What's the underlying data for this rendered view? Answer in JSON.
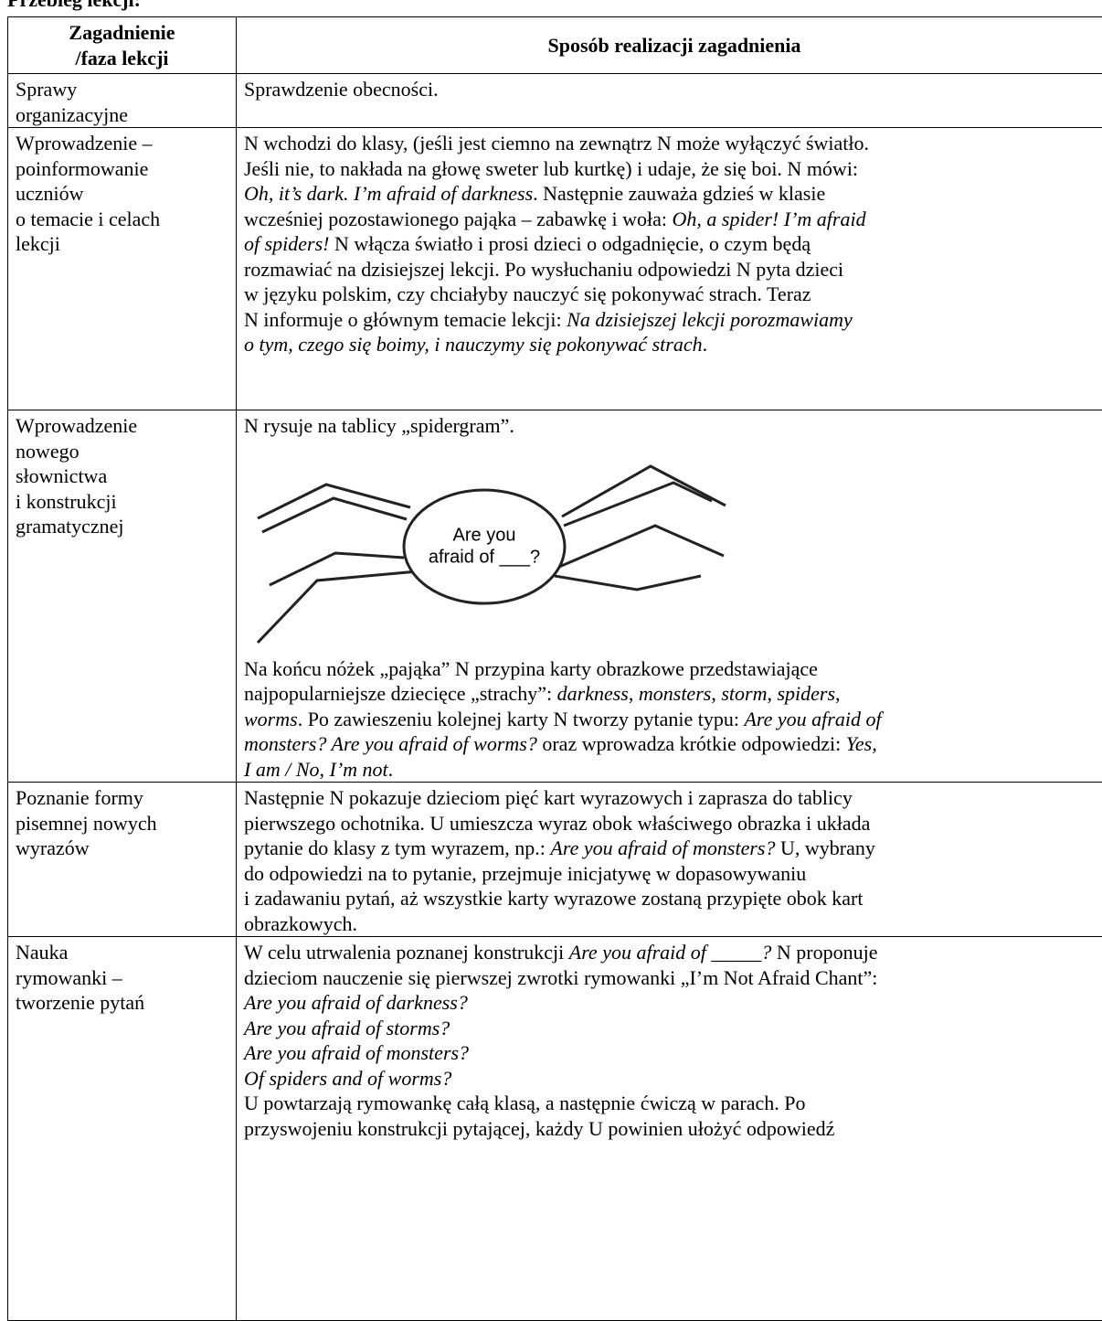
{
  "header": {
    "title": "Przebieg lekcji:"
  },
  "table": {
    "columns": [
      [
        "Zagadnienie",
        "/faza lekcji"
      ],
      [
        "Sposób realizacji zagadnienia"
      ]
    ],
    "rows": [
      {
        "topic": [
          "Sprawy",
          "organizacyjne"
        ],
        "blocks": [
          {
            "lines": [
              [
                {
                  "text": "Sprawdzenie obecności."
                }
              ]
            ]
          }
        ]
      },
      {
        "topic": [
          "Wprowadzenie –",
          "poinformowanie",
          "uczniów",
          "o temacie i celach",
          "lekcji"
        ],
        "blocks": [
          {
            "lines": [
              [
                {
                  "text": "N wchodzi do klasy, (jeśli jest ciemno na zewnątrz N może wyłączyć światło."
                }
              ],
              [
                {
                  "text": "Jeśli nie, to nakłada na głowę sweter lub kurtkę) i udaje, że się boi. N mówi:"
                }
              ],
              [
                {
                  "text": "Oh, it’s dark. I’m afraid of darkness",
                  "italic": true
                },
                {
                  "text": ". Następnie zauważa gdzieś w klasie"
                }
              ],
              [
                {
                  "text": "wcześniej pozostawionego pająka – zabawkę i woła: "
                },
                {
                  "text": "Oh, a spider! I’m afraid",
                  "italic": true
                }
              ],
              [
                {
                  "text": "of spiders!",
                  "italic": true
                },
                {
                  "text": " N włącza światło i prosi dzieci o odgadnięcie, o czym będą"
                }
              ],
              [
                {
                  "text": "rozmawiać na dzisiejszej lekcji. Po wysłuchaniu odpowiedzi N pyta dzieci"
                }
              ],
              [
                {
                  "text": "w języku polskim, czy chciałyby nauczyć się pokonywać strach. Teraz"
                }
              ],
              [
                {
                  "text": "N informuje o głównym temacie lekcji: "
                },
                {
                  "text": "Na dzisiejszej lekcji porozmawiamy",
                  "italic": true
                }
              ],
              [
                {
                  "text": "o tym, czego się boimy, i nauczymy się pokonywać strach",
                  "italic": true
                },
                {
                  "text": "."
                }
              ]
            ]
          }
        ]
      },
      {
        "topic": [
          "Wprowadzenie",
          "nowego",
          "słownictwa",
          "i konstrukcji",
          "gramatycznej"
        ],
        "blocks": [
          {
            "lines": [
              [
                {
                  "text": "N rysuje na tablicy „spidergram”."
                }
              ]
            ]
          },
          {
            "diagram": [
              "Are you",
              "afraid of ___?"
            ]
          },
          {
            "lines": [
              [
                {
                  "text": "Na końcu nóżek „pająka” N przypina karty obrazkowe przedstawiające"
                }
              ],
              [
                {
                  "text": "najpopularniejsze dziecięce „strachy”: "
                },
                {
                  "text": "darkness",
                  "italic": true
                },
                {
                  "text": ", "
                },
                {
                  "text": "monsters",
                  "italic": true
                },
                {
                  "text": ", "
                },
                {
                  "text": "storm",
                  "italic": true
                },
                {
                  "text": ", "
                },
                {
                  "text": "spiders",
                  "italic": true
                },
                {
                  "text": ","
                }
              ],
              [
                {
                  "text": "worms",
                  "italic": true
                },
                {
                  "text": ". Po zawieszeniu kolejnej karty N tworzy pytanie typu: "
                },
                {
                  "text": "Are you afraid of",
                  "italic": true
                }
              ],
              [
                {
                  "text": "monsters? Are you afraid of worms?",
                  "italic": true
                },
                {
                  "text": " oraz wprowadza krótkie odpowiedzi: "
                },
                {
                  "text": "Yes,",
                  "italic": true
                }
              ],
              [
                {
                  "text": "I am / No, I’m not",
                  "italic": true
                },
                {
                  "text": "."
                }
              ]
            ]
          }
        ]
      },
      {
        "topic": [
          "Poznanie formy",
          "pisemnej nowych",
          "wyrazów"
        ],
        "blocks": [
          {
            "lines": [
              [
                {
                  "text": "Następnie N pokazuje dzieciom pięć kart wyrazowych i zaprasza do tablicy"
                }
              ],
              [
                {
                  "text": "pierwszego ochotnika. U umieszcza wyraz obok właściwego obrazka i układa"
                }
              ],
              [
                {
                  "text": "pytanie do klasy z tym wyrazem, np.: "
                },
                {
                  "text": "Are you afraid of monsters?",
                  "italic": true
                },
                {
                  "text": " U, wybrany"
                }
              ],
              [
                {
                  "text": "do odpowiedzi na to pytanie, przejmuje inicjatywę w dopasowywaniu"
                }
              ],
              [
                {
                  "text": "i zadawaniu pytań, aż wszystkie karty wyrazowe zostaną przypięte obok kart"
                }
              ],
              [
                {
                  "text": "obrazkowych."
                }
              ]
            ]
          }
        ]
      },
      {
        "topic": [
          "Nauka",
          "rymowanki –",
          "tworzenie pytań"
        ],
        "blocks": [
          {
            "lines": [
              [
                {
                  "text": "W celu utrwalenia poznanej konstrukcji "
                },
                {
                  "text": "Are you afraid of _____?",
                  "italic": true
                },
                {
                  "text": " N proponuje"
                }
              ],
              [
                {
                  "text": "dzieciom nauczenie się pierwszej zwrotki rymowanki „I’m Not Afraid Chant”:"
                }
              ],
              [
                {
                  "text": "Are you afraid of darkness?",
                  "italic": true
                }
              ],
              [
                {
                  "text": "Are you afraid of storms?",
                  "italic": true
                }
              ],
              [
                {
                  "text": "Are you afraid of monsters?",
                  "italic": true
                }
              ],
              [
                {
                  "text": "Of spiders and of worms?",
                  "italic": true
                }
              ],
              [
                {
                  "text": "U powtarzają rymowankę całą klasą, a następnie ćwiczą w parach. Po"
                }
              ],
              [
                {
                  "text": "przyswojeniu konstrukcji pytającej, każdy U powinien ułożyć odpowiedź"
                }
              ]
            ]
          }
        ]
      }
    ]
  }
}
